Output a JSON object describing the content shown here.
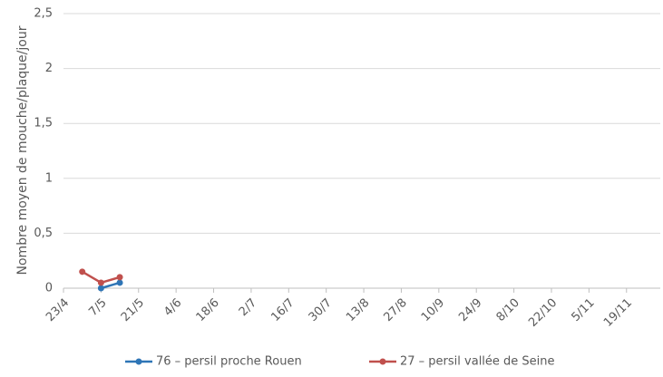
{
  "chart_data": {
    "type": "line",
    "ylabel": "Nombre moyen de mouche/plaque/jour",
    "xticks": [
      "23/4",
      "7/5",
      "21/5",
      "4/6",
      "18/6",
      "2/7",
      "16/7",
      "30/7",
      "13/8",
      "27/8",
      "10/9",
      "24/9",
      "8/10",
      "22/10",
      "5/11",
      "19/11"
    ],
    "xlim": [
      0,
      15.9
    ],
    "ylim": [
      0,
      2.5
    ],
    "yticks": [
      0,
      {
        "value": 0.5,
        "label": "0,5"
      },
      1,
      {
        "value": 1.5,
        "label": "1,5"
      },
      2,
      {
        "value": 2.5,
        "label": "2,5"
      }
    ],
    "grid": true,
    "legend": "bottom",
    "series": [
      {
        "name": "76 – persil proche Rouen",
        "color": "#2e75b6",
        "x": [
          1,
          1.5
        ],
        "values": [
          0.0,
          0.05
        ]
      },
      {
        "name": "27 – persil vallée de Seine",
        "color": "#c0504d",
        "x": [
          0.5,
          1,
          1.5
        ],
        "values": [
          0.15,
          0.05,
          0.1
        ]
      }
    ]
  }
}
